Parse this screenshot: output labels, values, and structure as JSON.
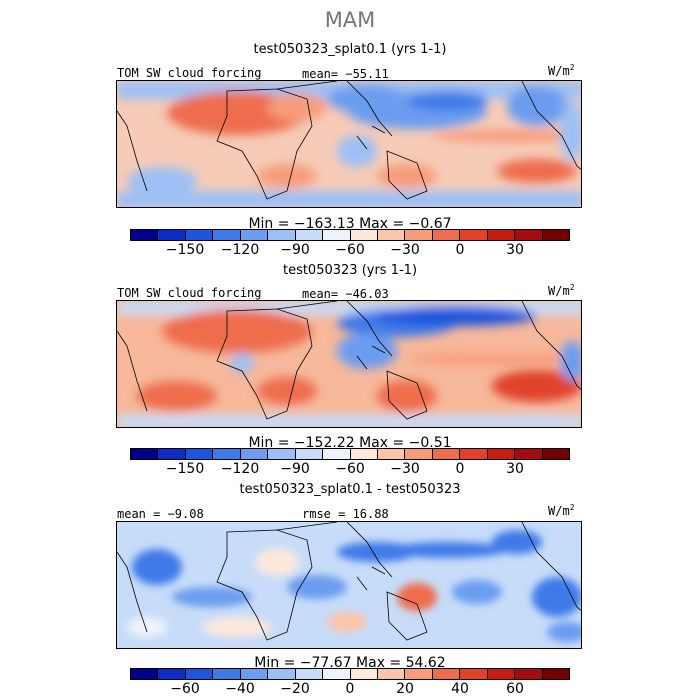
{
  "season": "MAM",
  "colors": [
    "#00008b",
    "#0b2dc4",
    "#1f55dd",
    "#3f7ae8",
    "#6b9df0",
    "#9cc0f5",
    "#c7dcf9",
    "#eef3fb",
    "#fde8dc",
    "#fcc5a9",
    "#f79c7a",
    "#ee6d4e",
    "#e0422b",
    "#c51d14",
    "#a30d0d",
    "#740000"
  ],
  "panels": [
    {
      "title": "test050323_splat0.1 (yrs 1-1)",
      "field": "TOM SW cloud forcing",
      "stat": "mean=  −55.11",
      "units_base": "W/m",
      "units_exp": "2",
      "minmax": "Min  =  −163.13  Max  =   −0.67",
      "ticks": [
        "−150",
        "−120",
        "−90",
        "−60",
        "−30",
        "0",
        "30"
      ]
    },
    {
      "title": "test050323 (yrs 1-1)",
      "field": "TOM SW cloud forcing",
      "stat": "mean=  −46.03",
      "units_base": "W/m",
      "units_exp": "2",
      "minmax": "Min  =  −152.22  Max  =   −0.51",
      "ticks": [
        "−150",
        "−120",
        "−90",
        "−60",
        "−30",
        "0",
        "30"
      ]
    },
    {
      "title": "test050323_splat0.1 - test050323",
      "field": "mean  =   −9.08",
      "stat": "rmse  =   16.88",
      "units_base": "W/m",
      "units_exp": "2",
      "minmax": "Min  =  −77.67  Max  =   54.62",
      "ticks": [
        "−60",
        "−40",
        "−20",
        "0",
        "20",
        "40",
        "60"
      ]
    }
  ]
}
